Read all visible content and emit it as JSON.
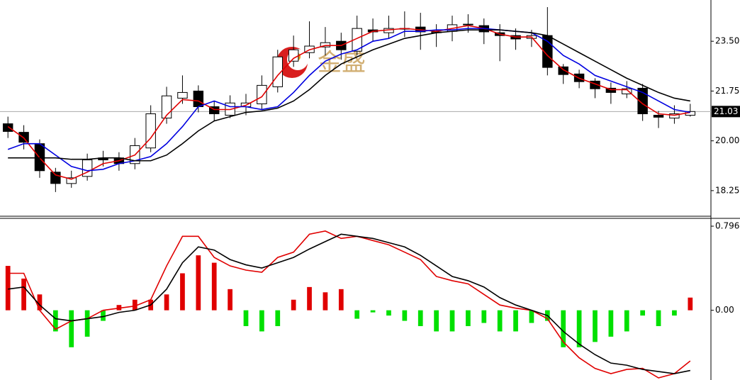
{
  "watermark": "金盛",
  "chart_data": [
    {
      "type": "candlestick",
      "up_color": "#ffffff",
      "down_color": "#000000",
      "edge_color": "#000000",
      "open": [
        20.6,
        20.3,
        19.9,
        18.9,
        18.5,
        18.75,
        19.4,
        19.4,
        19.2,
        19.75,
        20.8,
        21.5,
        21.75,
        21.2,
        20.9,
        21.2,
        21.3,
        21.9,
        22.8,
        23.1,
        23.3,
        23.5,
        23.15,
        23.9,
        23.8,
        23.95,
        24.0,
        23.8,
        23.85,
        24.1,
        24.05,
        23.8,
        23.7,
        23.6,
        23.7,
        22.6,
        22.35,
        22.1,
        21.85,
        21.65,
        21.85,
        20.9,
        20.8,
        20.9
      ],
      "high": [
        20.85,
        20.55,
        20.05,
        19.05,
        18.95,
        19.55,
        19.65,
        19.6,
        20.1,
        21.25,
        21.9,
        22.3,
        21.95,
        21.4,
        21.6,
        21.65,
        22.3,
        23.2,
        23.7,
        24.2,
        24.0,
        23.8,
        24.4,
        24.3,
        24.4,
        24.55,
        24.5,
        24.1,
        24.4,
        24.45,
        24.3,
        24.1,
        23.95,
        23.9,
        24.7,
        22.7,
        22.5,
        22.2,
        22.05,
        22.1,
        22.0,
        21.05,
        21.25,
        21.3
      ],
      "low": [
        20.1,
        19.7,
        18.7,
        18.2,
        18.35,
        18.6,
        19.1,
        18.95,
        19.0,
        19.6,
        20.6,
        21.3,
        21.0,
        20.7,
        20.8,
        20.9,
        21.1,
        21.7,
        22.6,
        22.9,
        23.0,
        22.85,
        23.0,
        23.5,
        23.6,
        23.65,
        23.2,
        23.3,
        23.5,
        23.8,
        23.4,
        22.8,
        23.2,
        23.3,
        22.3,
        22.0,
        21.85,
        21.5,
        21.3,
        21.5,
        20.7,
        20.45,
        20.6,
        20.85
      ],
      "close": [
        20.33,
        19.95,
        18.95,
        18.5,
        18.7,
        19.33,
        19.33,
        19.2,
        19.83,
        20.95,
        21.58,
        21.7,
        21.2,
        20.95,
        21.33,
        21.33,
        21.95,
        22.95,
        23.2,
        23.33,
        23.45,
        23.2,
        23.95,
        23.83,
        23.95,
        23.95,
        23.83,
        23.83,
        24.08,
        24.08,
        23.83,
        23.7,
        23.58,
        23.7,
        22.58,
        22.33,
        22.08,
        21.83,
        21.7,
        21.83,
        20.95,
        20.83,
        20.95,
        21.03
      ],
      "series": [
        {
          "color": "#e00000",
          "values": [
            20.5,
            20.1,
            19.4,
            18.8,
            18.65,
            18.9,
            19.2,
            19.3,
            19.5,
            20.1,
            20.9,
            21.45,
            21.4,
            21.1,
            21.1,
            21.25,
            21.55,
            22.3,
            22.9,
            23.2,
            23.35,
            23.35,
            23.6,
            23.85,
            23.9,
            23.95,
            23.9,
            23.85,
            23.95,
            24.05,
            23.95,
            23.75,
            23.65,
            23.65,
            23.0,
            22.5,
            22.2,
            22.0,
            21.8,
            21.8,
            21.3,
            20.95,
            20.9,
            21.0
          ]
        },
        {
          "color": "#0000e0",
          "values": [
            19.7,
            19.9,
            19.9,
            19.5,
            19.1,
            18.95,
            19.0,
            19.2,
            19.3,
            19.45,
            19.9,
            20.5,
            21.2,
            21.4,
            21.2,
            21.2,
            21.1,
            21.2,
            21.7,
            22.3,
            22.8,
            23.05,
            23.2,
            23.5,
            23.6,
            23.85,
            23.85,
            23.9,
            23.9,
            23.95,
            23.95,
            23.9,
            23.85,
            23.8,
            23.5,
            23.0,
            22.7,
            22.3,
            22.1,
            21.9,
            21.7,
            21.4,
            21.1,
            21.0
          ]
        },
        {
          "color": "#000000",
          "values": [
            19.4,
            19.4,
            19.4,
            19.4,
            19.35,
            19.35,
            19.4,
            19.4,
            19.3,
            19.3,
            19.5,
            19.9,
            20.35,
            20.7,
            20.85,
            21.0,
            21.05,
            21.15,
            21.4,
            21.8,
            22.3,
            22.7,
            22.95,
            23.2,
            23.4,
            23.6,
            23.7,
            23.8,
            23.85,
            23.9,
            23.9,
            23.9,
            23.85,
            23.8,
            23.7,
            23.4,
            23.1,
            22.8,
            22.5,
            22.2,
            21.95,
            21.7,
            21.5,
            21.4
          ]
        }
      ],
      "last_price": 21.03,
      "ylim": [
        17.35,
        24.95
      ],
      "yticks": [
        {
          "value": 23.5,
          "label": "23.50"
        },
        21.75,
        {
          "value": 20,
          "label": "20.00"
        },
        18.25
      ]
    },
    {
      "type": "macd",
      "positive_color": "#e00000",
      "negative_color": "#00e000",
      "histogram": [
        0.42,
        0.3,
        0.15,
        -0.2,
        -0.35,
        -0.25,
        -0.1,
        0.05,
        0.1,
        0.1,
        0.15,
        0.35,
        0.52,
        0.45,
        0.2,
        -0.15,
        -0.2,
        -0.15,
        0.1,
        0.22,
        0.17,
        0.2,
        -0.08,
        -0.02,
        -0.05,
        -0.1,
        -0.15,
        -0.2,
        -0.2,
        -0.15,
        -0.12,
        -0.2,
        -0.2,
        -0.12,
        -0.1,
        -0.35,
        -0.35,
        -0.3,
        -0.25,
        -0.2,
        -0.05,
        -0.15,
        -0.05,
        0.12
      ],
      "series": [
        {
          "color": "#e00000",
          "values": [
            0.35,
            0.35,
            0.0,
            -0.18,
            -0.1,
            -0.08,
            0.0,
            0.02,
            0.04,
            0.1,
            0.42,
            0.7,
            0.7,
            0.5,
            0.42,
            0.38,
            0.36,
            0.5,
            0.55,
            0.72,
            0.75,
            0.68,
            0.7,
            0.66,
            0.62,
            0.55,
            0.48,
            0.32,
            0.28,
            0.25,
            0.15,
            0.05,
            0.02,
            0.0,
            -0.08,
            -0.3,
            -0.45,
            -0.55,
            -0.6,
            -0.56,
            -0.55,
            -0.64,
            -0.6,
            -0.48
          ]
        },
        {
          "color": "#000000",
          "values": [
            0.2,
            0.22,
            0.05,
            -0.08,
            -0.1,
            -0.08,
            -0.06,
            -0.02,
            0.0,
            0.05,
            0.2,
            0.45,
            0.6,
            0.57,
            0.48,
            0.43,
            0.4,
            0.45,
            0.5,
            0.58,
            0.65,
            0.72,
            0.7,
            0.68,
            0.64,
            0.6,
            0.52,
            0.42,
            0.32,
            0.28,
            0.22,
            0.12,
            0.05,
            0.0,
            -0.05,
            -0.2,
            -0.32,
            -0.42,
            -0.5,
            -0.52,
            -0.56,
            -0.58,
            -0.6,
            -0.57
          ]
        }
      ],
      "ylim": [
        -0.66,
        0.87
      ],
      "yticks": [
        0.796,
        {
          "value": 0,
          "label": "0.00"
        }
      ]
    }
  ]
}
